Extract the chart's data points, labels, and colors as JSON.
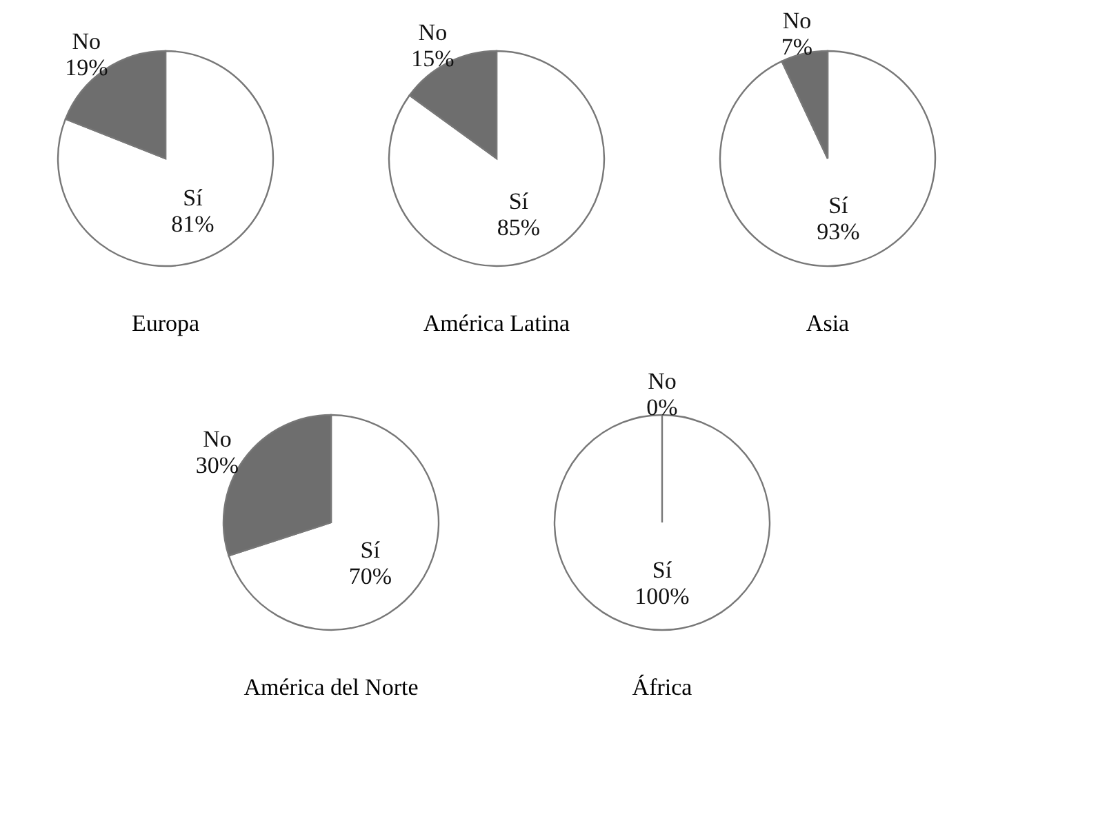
{
  "chart_data": [
    {
      "type": "pie",
      "title": "Europa",
      "categories": [
        "Sí",
        "No"
      ],
      "values": [
        81,
        19
      ],
      "value_labels": [
        "81%",
        "19%"
      ],
      "colors": [
        "#ffffff",
        "#6e6e6e"
      ]
    },
    {
      "type": "pie",
      "title": "América Latina",
      "categories": [
        "Sí",
        "No"
      ],
      "values": [
        85,
        15
      ],
      "value_labels": [
        "85%",
        "15%"
      ],
      "colors": [
        "#ffffff",
        "#6e6e6e"
      ]
    },
    {
      "type": "pie",
      "title": "Asia",
      "categories": [
        "Sí",
        "No"
      ],
      "values": [
        93,
        7
      ],
      "value_labels": [
        "93%",
        "7%"
      ],
      "colors": [
        "#ffffff",
        "#6e6e6e"
      ]
    },
    {
      "type": "pie",
      "title": "América del Norte",
      "categories": [
        "Sí",
        "No"
      ],
      "values": [
        70,
        30
      ],
      "value_labels": [
        "70%",
        "30%"
      ],
      "colors": [
        "#ffffff",
        "#6e6e6e"
      ]
    },
    {
      "type": "pie",
      "title": "África",
      "categories": [
        "Sí",
        "No"
      ],
      "values": [
        100,
        0
      ],
      "value_labels": [
        "100%",
        "0%"
      ],
      "colors": [
        "#ffffff",
        "#6e6e6e"
      ]
    }
  ]
}
